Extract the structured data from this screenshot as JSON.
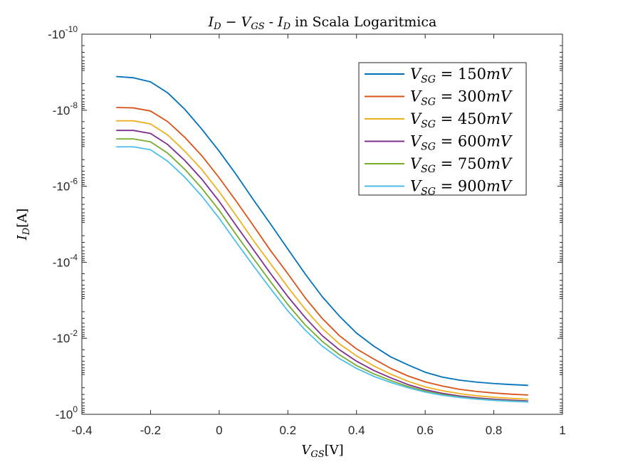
{
  "chart_data": {
    "type": "line",
    "title": "I_D − V_GS - I_D in Scala Logaritmica",
    "title_parts": {
      "a": "I",
      "a_sub": "D",
      "mid": " − ",
      "b": "V",
      "b_sub": "GS",
      "sep": " - ",
      "c": "I",
      "c_sub": "D",
      "rest": " in Scala Logaritmica"
    },
    "xlabel": "V_GS[V]",
    "xlabel_parts": {
      "v": "V",
      "sub": "GS",
      "unit": "[V]"
    },
    "ylabel": "I_D[A]",
    "ylabel_parts": {
      "v": "I",
      "sub": "D",
      "unit": "[A]"
    },
    "xlim": [
      -0.4,
      1
    ],
    "ylim": [
      -1,
      -1e-10
    ],
    "y_scale": "log (reversed, negative values)",
    "x_ticks": [
      "-0.4",
      "-0.2",
      "0",
      "0.2",
      "0.4",
      "0.6",
      "0.8",
      "1"
    ],
    "y_ticks": [
      {
        "base": "-10",
        "exp": "-10"
      },
      {
        "base": "-10",
        "exp": "-8"
      },
      {
        "base": "-10",
        "exp": "-6"
      },
      {
        "base": "-10",
        "exp": "-4"
      },
      {
        "base": "-10",
        "exp": "-2"
      },
      {
        "base": "-10",
        "exp": "0"
      }
    ],
    "grid": false,
    "legend_position": "top-right",
    "x": [
      -0.3,
      -0.25,
      -0.2,
      -0.15,
      -0.1,
      -0.05,
      0.0,
      0.05,
      0.1,
      0.15,
      0.2,
      0.25,
      0.3,
      0.35,
      0.4,
      0.45,
      0.5,
      0.55,
      0.6,
      0.65,
      0.7,
      0.75,
      0.8,
      0.85,
      0.9
    ],
    "series": [
      {
        "name": "V_SG = 150mV",
        "label_parts": {
          "v": "V",
          "sub": "SG",
          "eq": " = 150",
          "unit": "mV"
        },
        "color": "#0072BD",
        "values": [
          -1.3e-09,
          -1.4e-09,
          -1.8e-09,
          -3.5e-09,
          -9.5e-09,
          -3.2e-08,
          -1.2e-07,
          -5e-07,
          -2.3e-06,
          -1e-05,
          -4.5e-05,
          -0.0002,
          -0.0008,
          -0.0026,
          -0.0073,
          -0.016,
          -0.031,
          -0.05,
          -0.078,
          -0.105,
          -0.126,
          -0.142,
          -0.155,
          -0.165,
          -0.173
        ]
      },
      {
        "name": "V_SG = 300mV",
        "label_parts": {
          "v": "V",
          "sub": "SG",
          "eq": " = 300",
          "unit": "mV"
        },
        "color": "#D95319",
        "values": [
          -8.5e-09,
          -8.7e-09,
          -1.05e-08,
          -2e-08,
          -5.2e-08,
          -1.6e-07,
          -6e-07,
          -2.5e-06,
          -1.1e-05,
          -5e-05,
          -0.0002,
          -0.00085,
          -0.003,
          -0.0085,
          -0.019,
          -0.035,
          -0.062,
          -0.098,
          -0.14,
          -0.18,
          -0.22,
          -0.25,
          -0.275,
          -0.295,
          -0.31
        ]
      },
      {
        "name": "V_SG = 450mV",
        "label_parts": {
          "v": "V",
          "sub": "SG",
          "eq": " = 450",
          "unit": "mV"
        },
        "color": "#EDB120",
        "values": [
          -1.9e-08,
          -1.9e-08,
          -2.3e-08,
          -4.5e-08,
          -1.2e-07,
          -3.7e-07,
          -1.4e-06,
          -6e-06,
          -2.7e-05,
          -0.00011,
          -0.00045,
          -0.0017,
          -0.0055,
          -0.014,
          -0.029,
          -0.053,
          -0.088,
          -0.135,
          -0.19,
          -0.24,
          -0.285,
          -0.325,
          -0.355,
          -0.38,
          -0.4
        ]
      },
      {
        "name": "V_SG = 600mV",
        "label_parts": {
          "v": "V",
          "sub": "SG",
          "eq": " = 600",
          "unit": "mV"
        },
        "color": "#7E2F8E",
        "values": [
          -3.4e-08,
          -3.4e-08,
          -4.1e-08,
          -8e-08,
          -2.1e-07,
          -6.6e-07,
          -2.5e-06,
          -1.1e-05,
          -4.7e-05,
          -0.0002,
          -0.0008,
          -0.0028,
          -0.0085,
          -0.02,
          -0.04,
          -0.07,
          -0.11,
          -0.165,
          -0.225,
          -0.28,
          -0.33,
          -0.37,
          -0.4,
          -0.425,
          -0.445
        ]
      },
      {
        "name": "V_SG = 750mV",
        "label_parts": {
          "v": "V",
          "sub": "SG",
          "eq": " = 750",
          "unit": "mV"
        },
        "color": "#77AC30",
        "values": [
          -5.7e-08,
          -5.7e-08,
          -6.8e-08,
          -1.35e-07,
          -3.6e-07,
          -1.15e-06,
          -4.3e-06,
          -1.9e-05,
          -8e-05,
          -0.00033,
          -0.0013,
          -0.0044,
          -0.012,
          -0.027,
          -0.052,
          -0.086,
          -0.13,
          -0.185,
          -0.245,
          -0.3,
          -0.35,
          -0.39,
          -0.42,
          -0.445,
          -0.465
        ]
      },
      {
        "name": "V_SG = 900mV",
        "label_parts": {
          "v": "V",
          "sub": "SG",
          "eq": " = 900",
          "unit": "mV"
        },
        "color": "#4DBEEE",
        "values": [
          -9.2e-08,
          -9.2e-08,
          -1.1e-07,
          -2.2e-07,
          -5.8e-07,
          -1.85e-06,
          -7e-06,
          -3e-05,
          -0.000125,
          -0.0005,
          -0.0019,
          -0.006,
          -0.016,
          -0.034,
          -0.062,
          -0.1,
          -0.145,
          -0.2,
          -0.26,
          -0.315,
          -0.36,
          -0.4,
          -0.43,
          -0.455,
          -0.475
        ]
      }
    ]
  }
}
